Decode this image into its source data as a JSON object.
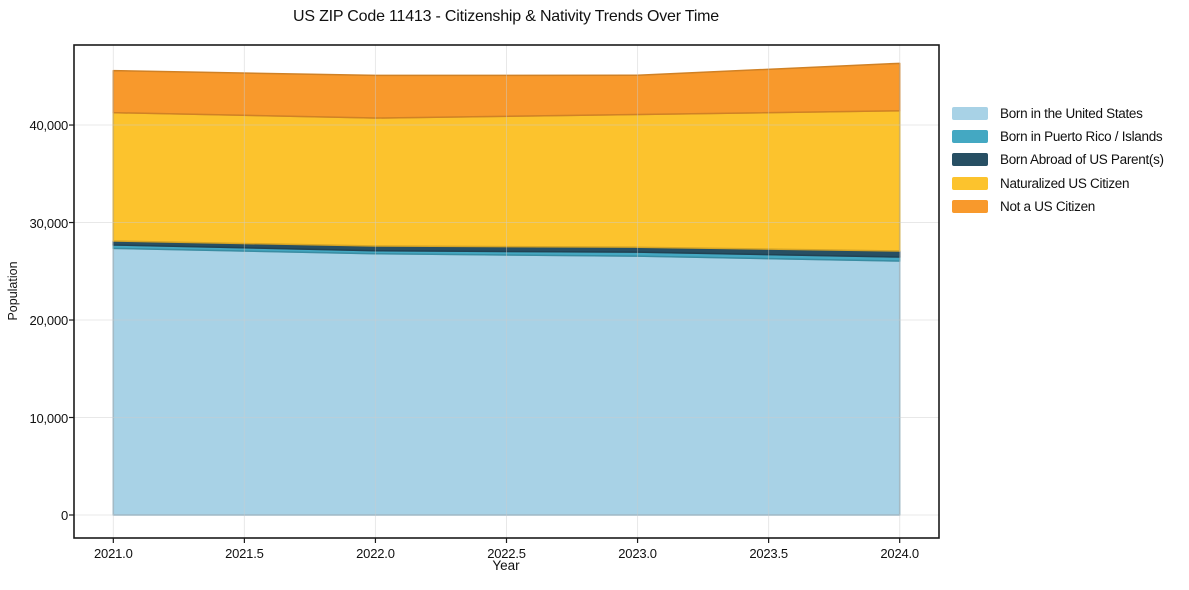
{
  "chart_data": {
    "type": "area",
    "stacked": true,
    "title": "US ZIP Code 11413 - Citizenship & Nativity Trends Over Time",
    "xlabel": "Year",
    "ylabel": "Population",
    "x": [
      2021,
      2022,
      2023,
      2024
    ],
    "series": [
      {
        "name": "Born in the United States",
        "color": "#A8D2E6",
        "values": [
          27350,
          26800,
          26550,
          26050
        ]
      },
      {
        "name": "Born in Puerto Rico / Islands",
        "color": "#44A8C2",
        "values": [
          350,
          310,
          410,
          410
        ]
      },
      {
        "name": "Born Abroad of US Parent(s)",
        "color": "#274F63",
        "values": [
          410,
          480,
          510,
          620
        ]
      },
      {
        "name": "Naturalized US Citizen",
        "color": "#FCC32D",
        "values": [
          13160,
          13130,
          13610,
          14390
        ]
      },
      {
        "name": "Not a US Citizen",
        "color": "#F8992C",
        "values": [
          4310,
          4370,
          4030,
          4860
        ]
      }
    ],
    "xlim": [
      2020.85,
      2024.15
    ],
    "ylim": [
      -2360,
      48210
    ],
    "xticks": {
      "values": [
        2021.0,
        2021.5,
        2022.0,
        2022.5,
        2023.0,
        2023.5,
        2024.0
      ],
      "labels": [
        "2021.0",
        "2021.5",
        "2022.0",
        "2022.5",
        "2023.0",
        "2023.5",
        "2024.0"
      ]
    },
    "yticks": {
      "values": [
        0,
        10000,
        20000,
        30000,
        40000
      ],
      "labels": [
        "0",
        "10,000",
        "20,000",
        "30,000",
        "40,000"
      ]
    },
    "grid": true,
    "legend_position": "right-top"
  },
  "colors": {
    "spine": "#1a1a1a",
    "grid": "rgba(205,205,205,0.45)",
    "text": "#111111",
    "background": "#ffffff"
  }
}
